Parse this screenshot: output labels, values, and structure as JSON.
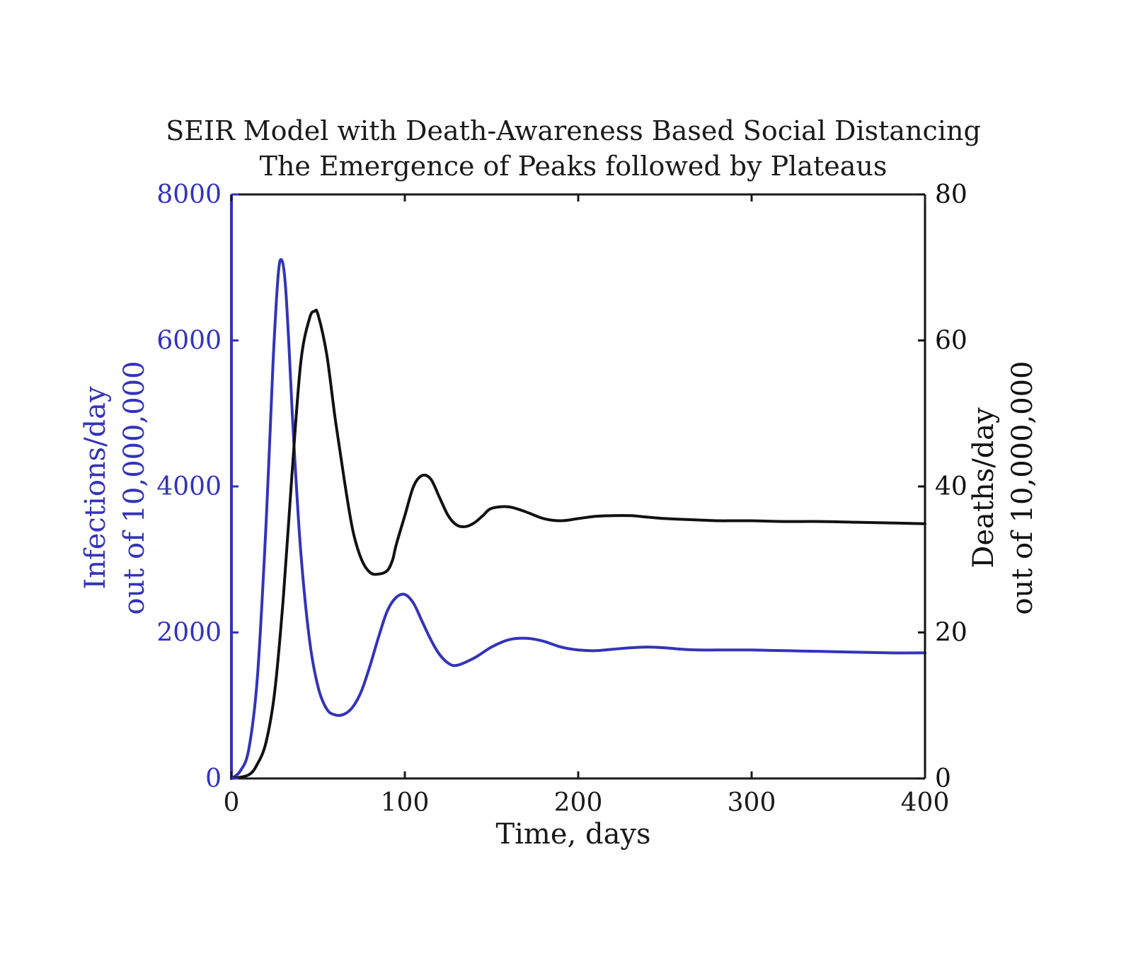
{
  "chart_data": {
    "type": "line",
    "title": [
      "SEIR Model with Death-Awareness Based Social Distancing",
      "The Emergence of Peaks followed by Plateaus"
    ],
    "xlabel": "Time, days",
    "ylabel_left": [
      "Infections/day",
      "out of 10,000,000"
    ],
    "ylabel_right": [
      "Deaths/day",
      "out of 10,000,000"
    ],
    "xlim": [
      0,
      400
    ],
    "ylim_left": [
      0,
      8000
    ],
    "ylim_right": [
      0,
      80
    ],
    "xticks": [
      0,
      100,
      200,
      300,
      400
    ],
    "yticks_left": [
      0,
      2000,
      4000,
      6000,
      8000
    ],
    "yticks_right": [
      0,
      20,
      40,
      60,
      80
    ],
    "grid": false,
    "colors": {
      "infections": "#3333bb",
      "deaths": "#111111",
      "axis": "#1a1a1a"
    },
    "series": [
      {
        "axis": "left",
        "x": [
          0,
          5,
          10,
          15,
          20,
          24,
          27,
          29,
          31,
          33,
          36,
          40,
          45,
          50,
          55,
          60,
          65,
          70,
          75,
          80,
          85,
          90,
          95,
          100,
          105,
          110,
          115,
          120,
          125,
          130,
          140,
          150,
          160,
          170,
          180,
          190,
          200,
          210,
          220,
          230,
          240,
          250,
          260,
          270,
          280,
          290,
          300,
          320,
          340,
          360,
          380,
          400
        ],
        "y": [
          0,
          100,
          400,
          1400,
          3500,
          5700,
          6900,
          7100,
          6800,
          6000,
          4600,
          3100,
          1900,
          1250,
          950,
          870,
          880,
          980,
          1200,
          1550,
          1950,
          2300,
          2480,
          2520,
          2400,
          2150,
          1900,
          1700,
          1580,
          1550,
          1650,
          1800,
          1900,
          1920,
          1880,
          1800,
          1760,
          1750,
          1770,
          1790,
          1800,
          1790,
          1770,
          1760,
          1760,
          1760,
          1760,
          1750,
          1740,
          1730,
          1720,
          1720
        ]
      },
      {
        "axis": "right",
        "x": [
          0,
          10,
          15,
          20,
          25,
          30,
          35,
          40,
          45,
          48,
          50,
          55,
          60,
          65,
          70,
          75,
          80,
          85,
          90,
          93,
          95,
          100,
          105,
          110,
          115,
          120,
          125,
          130,
          135,
          140,
          145,
          150,
          160,
          170,
          180,
          190,
          200,
          210,
          220,
          230,
          240,
          250,
          260,
          270,
          280,
          290,
          300,
          320,
          340,
          360,
          380,
          400
        ],
        "y": [
          0,
          0.5,
          2,
          5,
          12,
          25,
          42,
          57,
          63,
          64,
          63.5,
          58,
          49,
          41,
          34,
          30,
          28.2,
          28,
          28.5,
          30,
          32,
          36,
          40,
          41.5,
          41,
          38.5,
          36,
          34.7,
          34.5,
          35,
          36,
          37,
          37.2,
          36.5,
          35.6,
          35.3,
          35.6,
          35.9,
          36,
          36,
          35.8,
          35.6,
          35.5,
          35.4,
          35.3,
          35.3,
          35.3,
          35.2,
          35.2,
          35.1,
          35.0,
          34.9
        ]
      }
    ]
  }
}
